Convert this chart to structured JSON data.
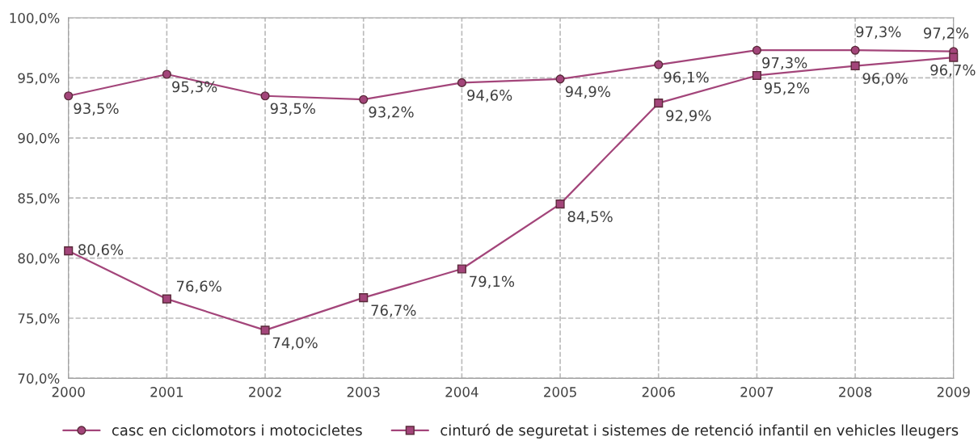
{
  "chart_data": {
    "type": "line",
    "x": [
      2000,
      2001,
      2002,
      2003,
      2004,
      2005,
      2006,
      2007,
      2008,
      2009
    ],
    "xlim": [
      2000,
      2009
    ],
    "xticks": [
      2000,
      2001,
      2002,
      2003,
      2004,
      2005,
      2006,
      2007,
      2008,
      2009
    ],
    "ylim": [
      70,
      100
    ],
    "yticks": [
      {
        "value": 70,
        "label": "70,0%"
      },
      {
        "value": 75,
        "label": "75,0%"
      },
      {
        "value": 80,
        "label": "80,0%"
      },
      {
        "value": 85,
        "label": "85,0%"
      },
      {
        "value": 90,
        "label": "90,0%"
      },
      {
        "value": 95,
        "label": "95,0%"
      },
      {
        "value": 100,
        "label": "100,0%"
      }
    ],
    "grid": true,
    "legend": "bottom",
    "line_style": "solid",
    "series": [
      {
        "name": "casc en ciclomotors i motocicletes",
        "color": "#a3457a",
        "marker": "circle",
        "values": [
          93.5,
          95.3,
          93.5,
          93.2,
          94.6,
          94.9,
          96.1,
          97.3,
          97.3,
          97.2
        ],
        "value_labels": [
          "93,5%",
          "95,3%",
          "93,5%",
          "93,2%",
          "94,6%",
          "94,9%",
          "96,1%",
          "97,3%",
          "97,3%",
          "97,2%"
        ]
      },
      {
        "name": "cinturó de seguretat i sistemes de retenció infantil en vehicles lleugers",
        "color": "#a3457a",
        "marker": "square",
        "values": [
          80.6,
          76.6,
          74.0,
          76.7,
          79.1,
          84.5,
          92.9,
          95.2,
          96.0,
          96.7
        ],
        "value_labels": [
          "80,6%",
          "76,6%",
          "74,0%",
          "76,7%",
          "79,1%",
          "84,5%",
          "92,9%",
          "95,2%",
          "96,0%",
          "96,7%"
        ]
      }
    ]
  }
}
